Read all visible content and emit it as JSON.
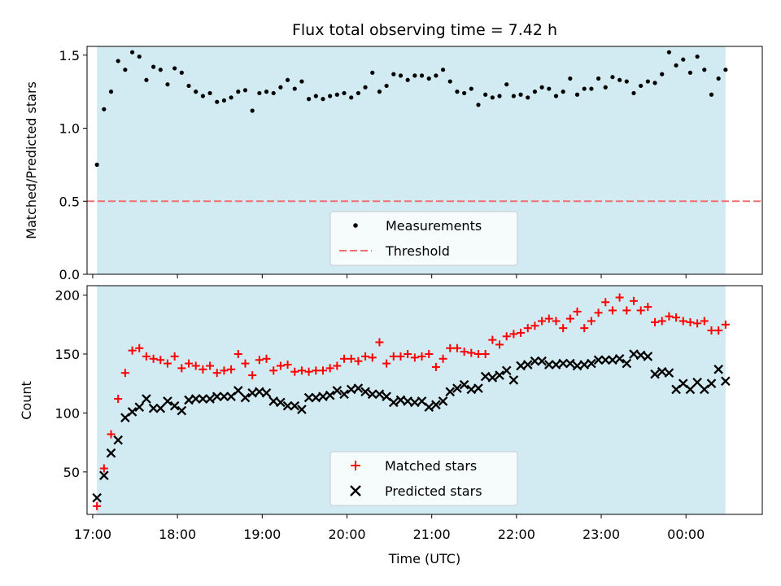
{
  "chart_data": [
    {
      "type": "scatter",
      "title": "Flux total observing time = 7.42 h",
      "ylabel": "Matched/Predicted stars",
      "xlabel": "",
      "xlim": [
        "16:56",
        "00:54"
      ],
      "ylim": [
        0.0,
        1.56
      ],
      "y_ticks": [
        "0.0",
        "0.5",
        "1.0",
        "1.5"
      ],
      "observing_window": [
        "17:03",
        "00:28"
      ],
      "legend_position": "lower center",
      "legend": [
        "Measurements",
        "Threshold"
      ],
      "threshold": 0.5,
      "series": [
        {
          "name": "Measurements",
          "marker": "dot",
          "color": "#000000",
          "x": [
            "17:03",
            "17:08",
            "17:13",
            "17:18",
            "17:23",
            "17:28",
            "17:33",
            "17:38",
            "17:43",
            "17:48",
            "17:53",
            "17:58",
            "18:03",
            "18:08",
            "18:13",
            "18:18",
            "18:23",
            "18:28",
            "18:33",
            "18:38",
            "18:43",
            "18:48",
            "18:53",
            "18:58",
            "19:03",
            "19:08",
            "19:13",
            "19:18",
            "19:23",
            "19:28",
            "19:33",
            "19:38",
            "19:43",
            "19:48",
            "19:53",
            "19:58",
            "20:03",
            "20:08",
            "20:13",
            "20:18",
            "20:23",
            "20:28",
            "20:33",
            "20:38",
            "20:43",
            "20:48",
            "20:53",
            "20:58",
            "21:03",
            "21:08",
            "21:13",
            "21:18",
            "21:23",
            "21:28",
            "21:33",
            "21:38",
            "21:43",
            "21:48",
            "21:53",
            "21:58",
            "22:03",
            "22:08",
            "22:13",
            "22:18",
            "22:23",
            "22:28",
            "22:33",
            "22:38",
            "22:43",
            "22:48",
            "22:53",
            "22:58",
            "23:03",
            "23:08",
            "23:13",
            "23:18",
            "23:23",
            "23:28",
            "23:33",
            "23:38",
            "23:43",
            "23:48",
            "23:53",
            "23:58",
            "00:03",
            "00:08",
            "00:13",
            "00:18",
            "00:23",
            "00:28"
          ],
          "values": [
            0.75,
            1.13,
            1.25,
            1.46,
            1.4,
            1.52,
            1.49,
            1.33,
            1.42,
            1.4,
            1.3,
            1.41,
            1.38,
            1.29,
            1.25,
            1.22,
            1.24,
            1.18,
            1.19,
            1.21,
            1.25,
            1.26,
            1.12,
            1.24,
            1.25,
            1.24,
            1.28,
            1.33,
            1.27,
            1.32,
            1.2,
            1.22,
            1.2,
            1.22,
            1.23,
            1.24,
            1.21,
            1.24,
            1.28,
            1.38,
            1.25,
            1.29,
            1.37,
            1.36,
            1.33,
            1.36,
            1.36,
            1.34,
            1.36,
            1.4,
            1.32,
            1.25,
            1.24,
            1.27,
            1.16,
            1.23,
            1.21,
            1.22,
            1.3,
            1.22,
            1.23,
            1.21,
            1.25,
            1.28,
            1.27,
            1.22,
            1.25,
            1.34,
            1.23,
            1.27,
            1.27,
            1.34,
            1.28,
            1.35,
            1.33,
            1.32,
            1.24,
            1.29,
            1.32,
            1.31,
            1.37,
            1.52,
            1.43,
            1.47,
            1.38,
            1.49,
            1.4,
            1.23,
            1.34,
            1.4
          ]
        }
      ]
    },
    {
      "type": "scatter",
      "title": "",
      "ylabel": "Count",
      "xlabel": "Time (UTC)",
      "xlim": [
        "16:56",
        "00:54"
      ],
      "ylim": [
        14,
        208
      ],
      "y_ticks": [
        "50",
        "100",
        "150",
        "200"
      ],
      "x_ticks": [
        "17:00",
        "18:00",
        "19:00",
        "20:00",
        "21:00",
        "22:00",
        "23:00",
        "00:00"
      ],
      "observing_window": [
        "17:03",
        "00:28"
      ],
      "legend_position": "lower center",
      "legend": [
        "Matched stars",
        "Predicted stars"
      ],
      "series": [
        {
          "name": "Matched stars",
          "marker": "plus",
          "color": "#ff0000",
          "x": [
            "17:03",
            "17:08",
            "17:13",
            "17:18",
            "17:23",
            "17:28",
            "17:33",
            "17:38",
            "17:43",
            "17:48",
            "17:53",
            "17:58",
            "18:03",
            "18:08",
            "18:13",
            "18:18",
            "18:23",
            "18:28",
            "18:33",
            "18:38",
            "18:43",
            "18:48",
            "18:53",
            "18:58",
            "19:03",
            "19:08",
            "19:13",
            "19:18",
            "19:23",
            "19:28",
            "19:33",
            "19:38",
            "19:43",
            "19:48",
            "19:53",
            "19:58",
            "20:03",
            "20:08",
            "20:13",
            "20:18",
            "20:23",
            "20:28",
            "20:33",
            "20:38",
            "20:43",
            "20:48",
            "20:53",
            "20:58",
            "21:03",
            "21:08",
            "21:13",
            "21:18",
            "21:23",
            "21:28",
            "21:33",
            "21:38",
            "21:43",
            "21:48",
            "21:53",
            "21:58",
            "22:03",
            "22:08",
            "22:13",
            "22:18",
            "22:23",
            "22:28",
            "22:33",
            "22:38",
            "22:43",
            "22:48",
            "22:53",
            "22:58",
            "23:03",
            "23:08",
            "23:13",
            "23:18",
            "23:23",
            "23:28",
            "23:33",
            "23:38",
            "23:43",
            "23:48",
            "23:53",
            "23:58",
            "00:03",
            "00:08",
            "00:13",
            "00:18",
            "00:23",
            "00:28"
          ],
          "values": [
            21,
            53,
            82,
            112,
            134,
            153,
            155,
            148,
            146,
            145,
            142,
            148,
            138,
            142,
            140,
            137,
            140,
            134,
            136,
            137,
            150,
            142,
            132,
            145,
            146,
            136,
            140,
            141,
            135,
            136,
            135,
            136,
            136,
            138,
            140,
            146,
            146,
            144,
            148,
            147,
            160,
            142,
            148,
            148,
            150,
            147,
            148,
            150,
            139,
            146,
            155,
            155,
            152,
            151,
            150,
            150,
            162,
            158,
            165,
            167,
            168,
            172,
            174,
            178,
            180,
            178,
            172,
            180,
            186,
            172,
            178,
            185,
            194,
            187,
            198,
            187,
            195,
            187,
            190,
            177,
            178,
            182,
            181,
            178,
            177,
            176,
            178,
            170,
            170,
            175
          ]
        },
        {
          "name": "Predicted stars",
          "marker": "x",
          "color": "#000000",
          "x": [
            "17:03",
            "17:08",
            "17:13",
            "17:18",
            "17:23",
            "17:28",
            "17:33",
            "17:38",
            "17:43",
            "17:48",
            "17:53",
            "17:58",
            "18:03",
            "18:08",
            "18:13",
            "18:18",
            "18:23",
            "18:28",
            "18:33",
            "18:38",
            "18:43",
            "18:48",
            "18:53",
            "18:58",
            "19:03",
            "19:08",
            "19:13",
            "19:18",
            "19:23",
            "19:28",
            "19:33",
            "19:38",
            "19:43",
            "19:48",
            "19:53",
            "19:58",
            "20:03",
            "20:08",
            "20:13",
            "20:18",
            "20:23",
            "20:28",
            "20:33",
            "20:38",
            "20:43",
            "20:48",
            "20:53",
            "20:58",
            "21:03",
            "21:08",
            "21:13",
            "21:18",
            "21:23",
            "21:28",
            "21:33",
            "21:38",
            "21:43",
            "21:48",
            "21:53",
            "21:58",
            "22:03",
            "22:08",
            "22:13",
            "22:18",
            "22:23",
            "22:28",
            "22:33",
            "22:38",
            "22:43",
            "22:48",
            "22:53",
            "22:58",
            "23:03",
            "23:08",
            "23:13",
            "23:18",
            "23:23",
            "23:28",
            "23:33",
            "23:38",
            "23:43",
            "23:48",
            "23:53",
            "23:58",
            "00:03",
            "00:08",
            "00:13",
            "00:18",
            "00:23",
            "00:28"
          ],
          "values": [
            28,
            47,
            66,
            77,
            96,
            101,
            105,
            112,
            104,
            104,
            110,
            106,
            102,
            111,
            112,
            112,
            112,
            114,
            114,
            114,
            119,
            113,
            117,
            118,
            117,
            110,
            109,
            106,
            106,
            103,
            113,
            113,
            114,
            115,
            119,
            116,
            120,
            121,
            118,
            116,
            116,
            114,
            109,
            111,
            110,
            109,
            110,
            105,
            107,
            110,
            118,
            121,
            124,
            120,
            121,
            131,
            130,
            132,
            136,
            128,
            140,
            141,
            144,
            144,
            141,
            141,
            142,
            142,
            140,
            141,
            142,
            145,
            145,
            145,
            146,
            142,
            150,
            149,
            148,
            133,
            135,
            134,
            120,
            125,
            120,
            126,
            120,
            125,
            137,
            127
          ]
        }
      ]
    }
  ]
}
